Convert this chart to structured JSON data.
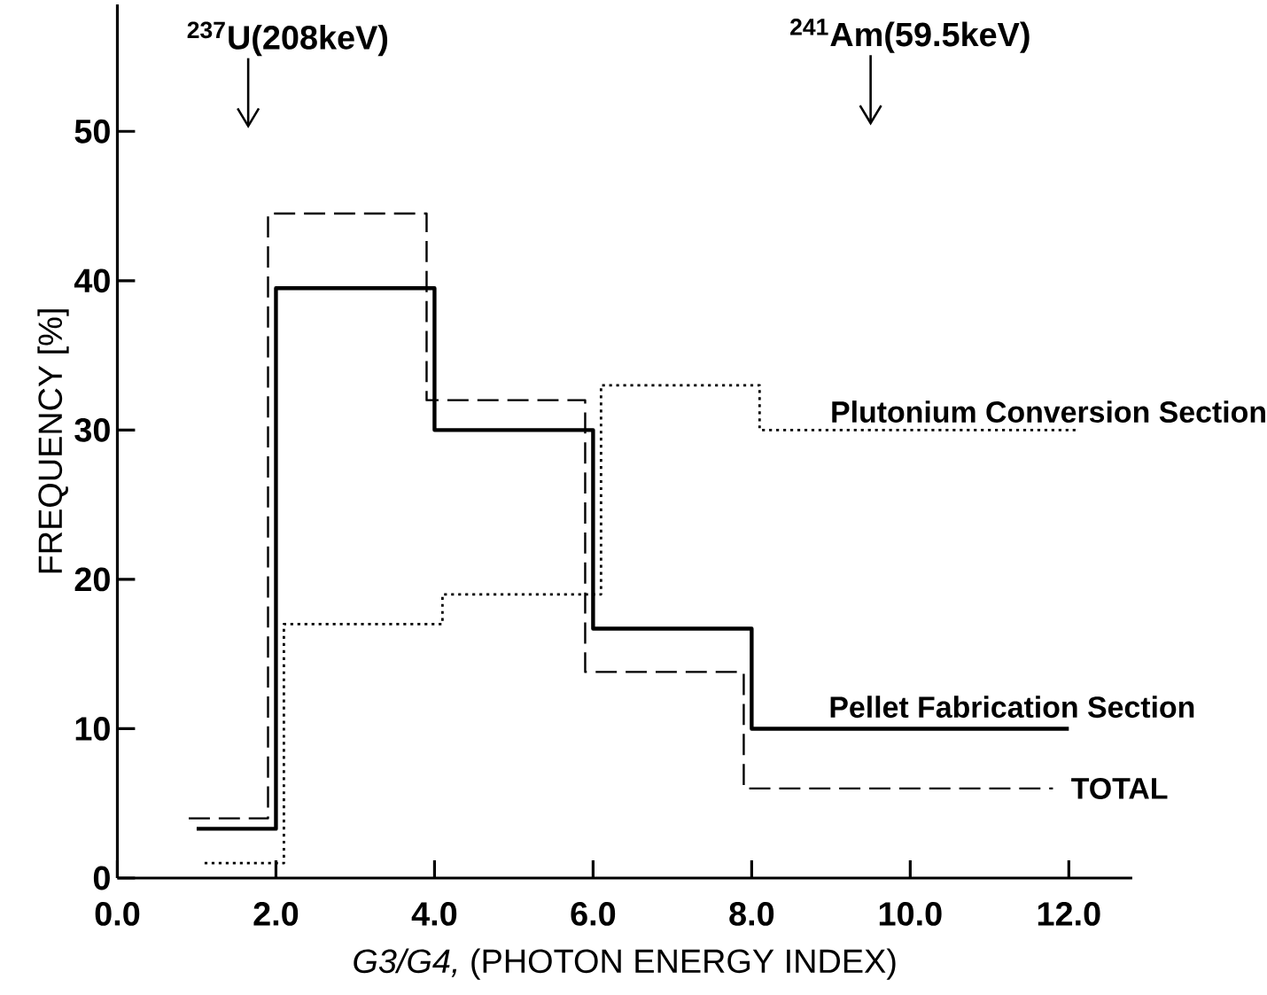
{
  "chart_data": {
    "type": "step",
    "xlabel": "*G3/G4,* (PHOTON ENERGY INDEX)",
    "ylabel": "FREQUENCY [%]",
    "xlim": [
      0,
      12.8
    ],
    "ylim": [
      0,
      58.5
    ],
    "xticks": [
      {
        "value": 0,
        "label": "0.0"
      },
      {
        "value": 2,
        "label": "2.0"
      },
      {
        "value": 4,
        "label": "4.0"
      },
      {
        "value": 6,
        "label": "6.0"
      },
      {
        "value": 8,
        "label": "8.0"
      },
      {
        "value": 10,
        "label": "10.0"
      },
      {
        "value": 12,
        "label": "12.0"
      }
    ],
    "yticks": [
      0,
      10,
      20,
      30,
      40,
      50
    ],
    "series": [
      {
        "name": "Plutonium Conversion Section",
        "color": "#000000",
        "line_style": "dotted",
        "x": [
          1.1,
          2.1,
          4.1,
          6.1,
          8.1,
          12.1
        ],
        "values": [
          1,
          17,
          19,
          33,
          30,
          30
        ]
      },
      {
        "name": "Pellet Fabrication Section",
        "color": "#000000",
        "line_style": "solid",
        "x": [
          1.0,
          2.0,
          4.0,
          6.0,
          8.0,
          12.0
        ],
        "values": [
          3.3,
          39.5,
          30,
          16.7,
          10,
          10
        ]
      },
      {
        "name": "TOTAL",
        "color": "#000000",
        "line_style": "dashed",
        "x": [
          0.9,
          1.9,
          3.9,
          5.9,
          7.9,
          11.8
        ],
        "values": [
          4,
          44.5,
          32,
          13.8,
          6,
          6
        ]
      }
    ],
    "annotations": [
      "$^{237}$U(208keV)",
      "$^{241}$Am(59.5keV)"
    ]
  }
}
